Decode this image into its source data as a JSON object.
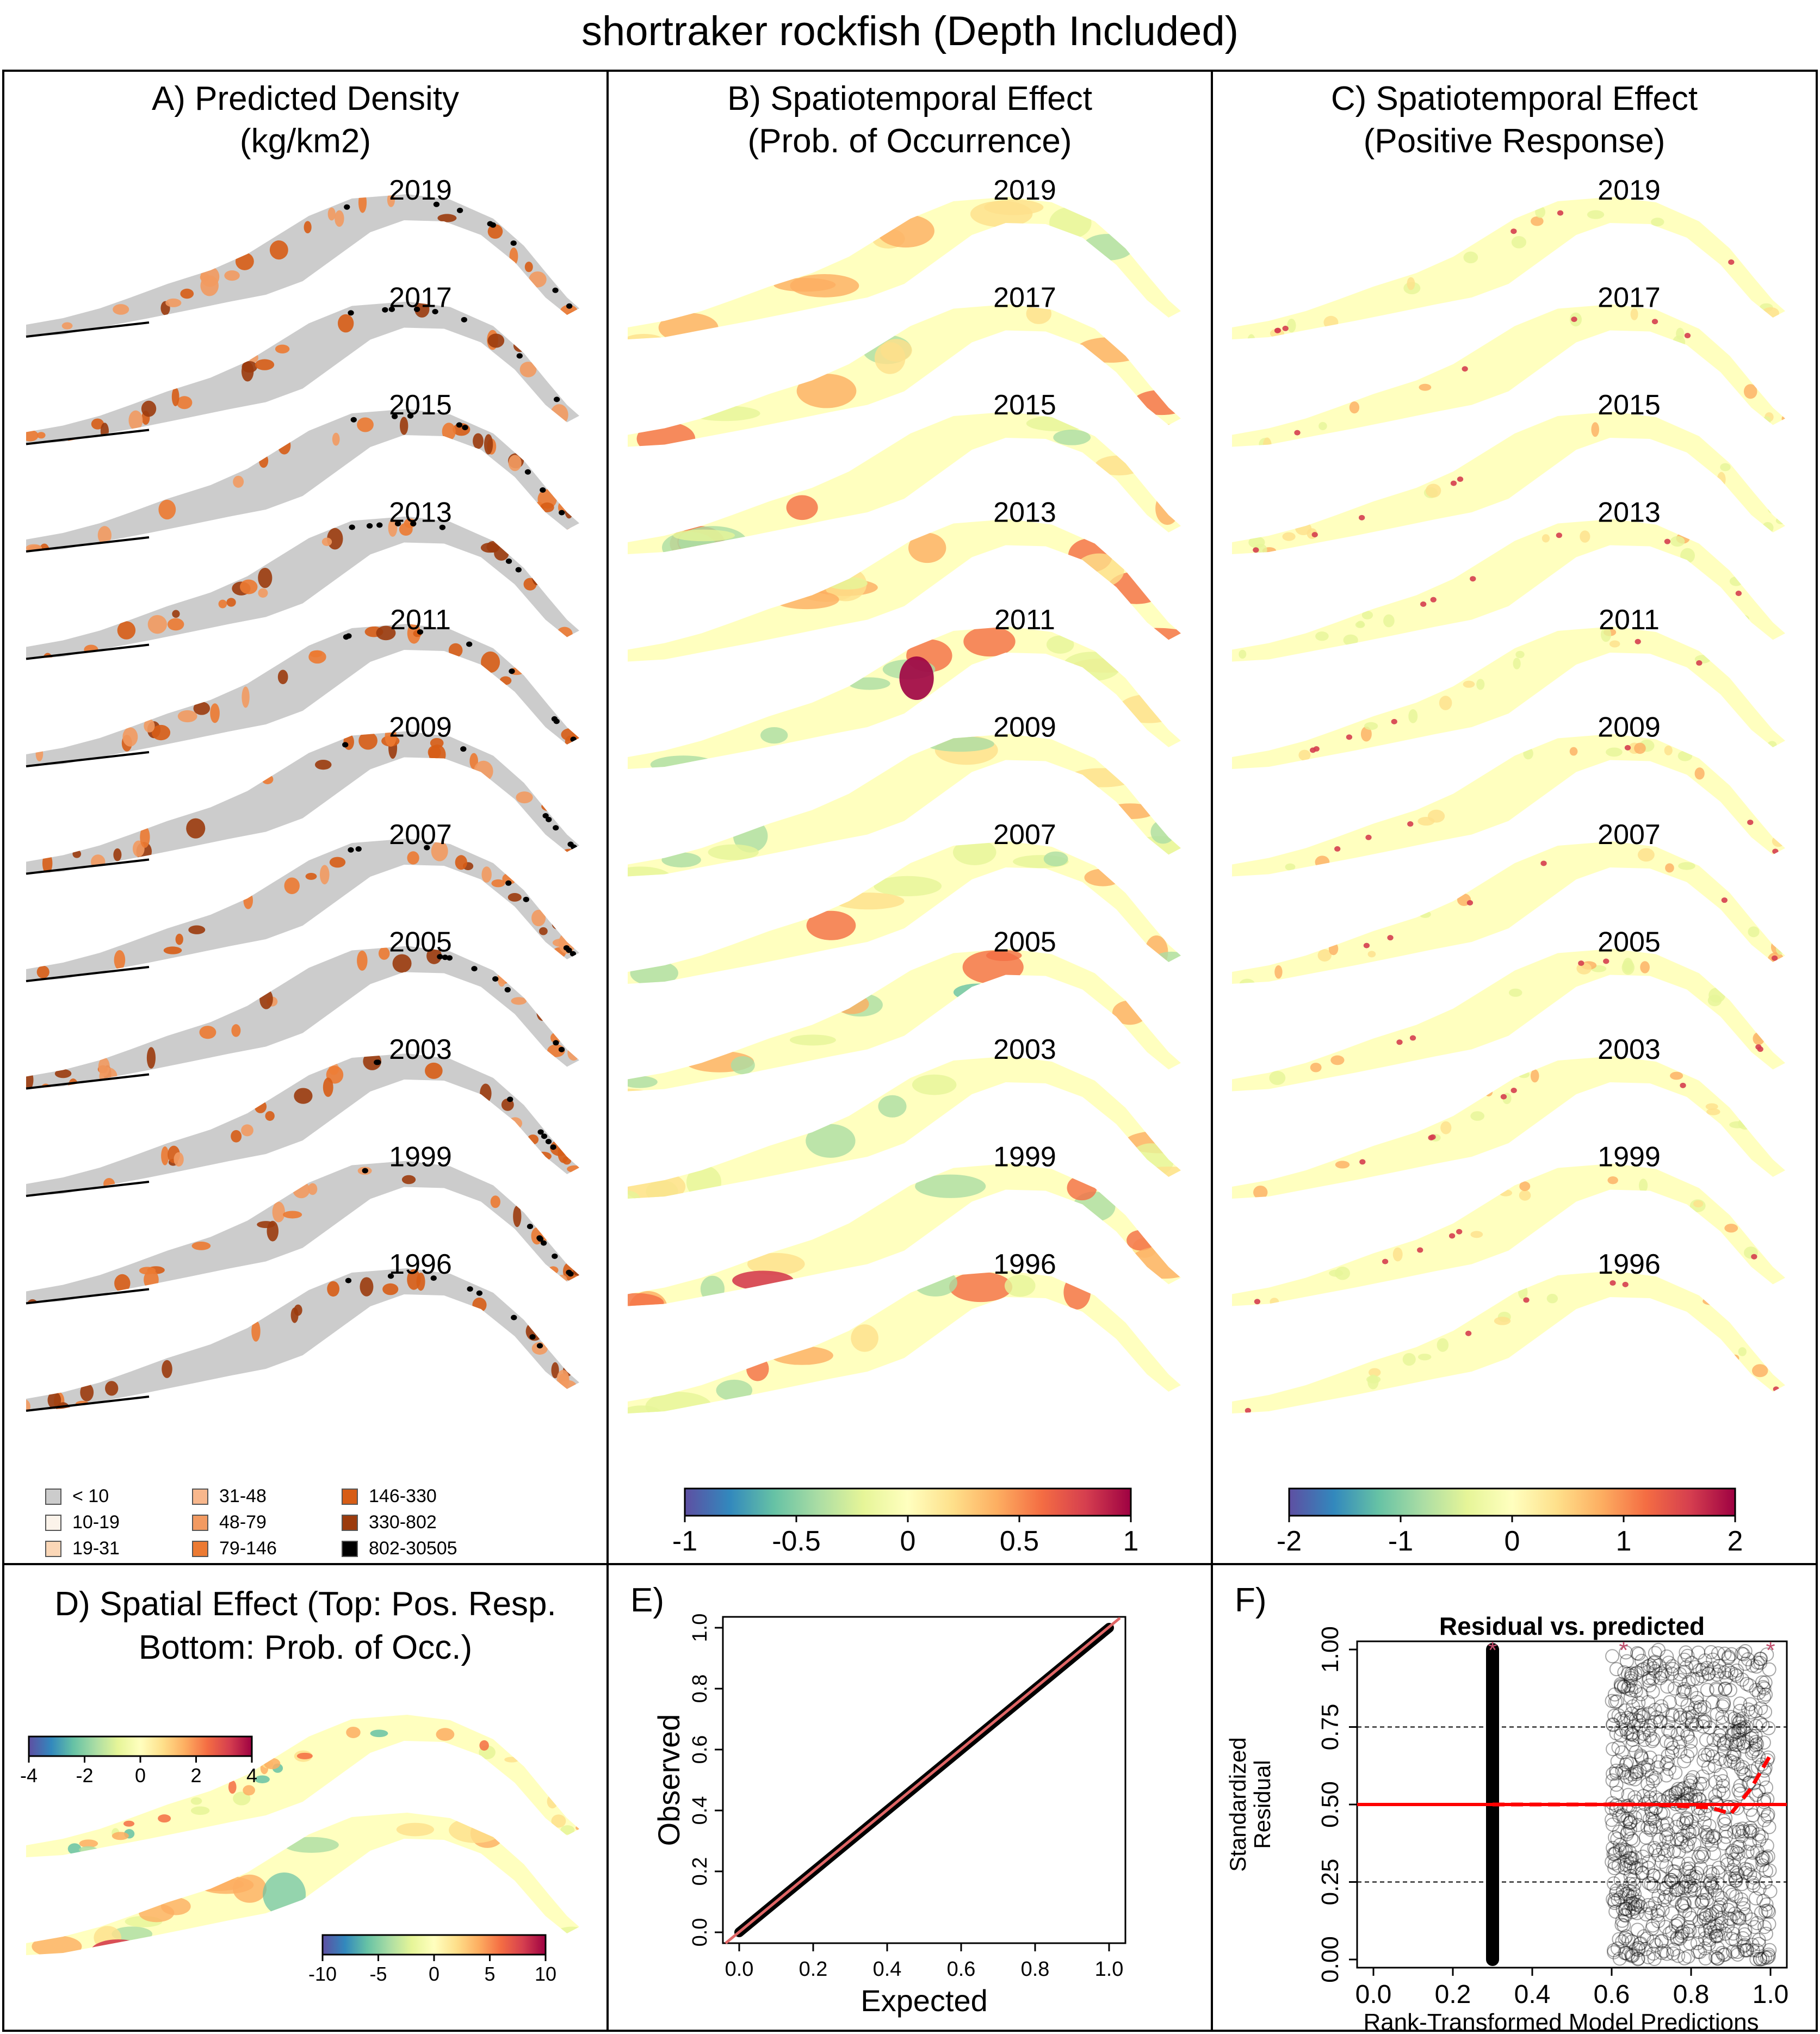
{
  "title": "shortraker rockfish (Depth Included)",
  "years": [
    "2019",
    "2017",
    "2015",
    "2013",
    "2011",
    "2009",
    "2007",
    "2005",
    "2003",
    "1999",
    "1996"
  ],
  "panels": {
    "a": {
      "title_line1": "A) Predicted Density",
      "title_line2": "(kg/km2)",
      "legend": [
        {
          "label": "< 10",
          "color": "#cccccc"
        },
        {
          "label": "10-19",
          "color": "#fbf3ea"
        },
        {
          "label": "19-31",
          "color": "#fbd7b7"
        },
        {
          "label": "31-48",
          "color": "#f8b78c"
        },
        {
          "label": "48-79",
          "color": "#f29a61"
        },
        {
          "label": "79-146",
          "color": "#ec7a32"
        },
        {
          "label": "146-330",
          "color": "#d75d16"
        },
        {
          "label": "330-802",
          "color": "#9b3b0d"
        },
        {
          "label": "802-30505",
          "color": "#000000"
        }
      ]
    },
    "b": {
      "title_line1": "B) Spatiotemporal Effect",
      "title_line2": "(Prob. of Occurrence)",
      "colorbar_ticks": [
        "-1",
        "-0.5",
        "0",
        "0.5",
        "1"
      ]
    },
    "c": {
      "title_line1": "C) Spatiotemporal Effect",
      "title_line2": "(Positive Response)",
      "colorbar_ticks": [
        "-2",
        "-1",
        "0",
        "1",
        "2"
      ]
    },
    "d": {
      "title_line1": "D) Spatial Effect (Top: Pos. Resp.",
      "title_line2": "Bottom: Prob. of Occ.)",
      "colorbar_top_ticks": [
        "-4",
        "-2",
        "0",
        "2",
        "4"
      ],
      "colorbar_bottom_ticks": [
        "-10",
        "-5",
        "0",
        "5",
        "10"
      ]
    },
    "e": {
      "label": "E)",
      "xlabel": "Expected",
      "ylabel": "Observed",
      "ticks": [
        "0.0",
        "0.2",
        "0.4",
        "0.6",
        "0.8",
        "1.0"
      ]
    },
    "f": {
      "label": "F)",
      "title": "Residual vs. predicted",
      "xlabel": "Rank-Transformed Model Predictions",
      "ylabel_line1": "Standardized",
      "ylabel_line2": "Residual",
      "xticks": [
        "0.0",
        "0.2",
        "0.4",
        "0.6",
        "0.8",
        "1.0"
      ],
      "yticks": [
        "0.00",
        "0.25",
        "0.50",
        "0.75",
        "1.00"
      ]
    }
  },
  "colors": {
    "spectral": [
      "#5e4fa2",
      "#3288bd",
      "#66c2a5",
      "#abdda4",
      "#e6f598",
      "#ffffbf",
      "#fee08b",
      "#fdae61",
      "#f46d43",
      "#d53e4f",
      "#9e0142"
    ],
    "qq_line": "#e06666",
    "residual_line": "#ff0000",
    "star": "#c0506e"
  },
  "chart_data": [
    {
      "type": "scatter",
      "title": "",
      "xlabel": "Expected",
      "ylabel": "Observed",
      "xlim": [
        0,
        1
      ],
      "ylim": [
        0,
        1
      ],
      "series": [
        {
          "x": [
            0,
            0.2,
            0.4,
            0.6,
            0.8,
            1.0
          ],
          "y": [
            0,
            0.2,
            0.4,
            0.6,
            0.8,
            1.0
          ]
        }
      ],
      "reference_line": [
        [
          0,
          0
        ],
        [
          1,
          1
        ]
      ]
    },
    {
      "type": "scatter",
      "title": "Residual vs. predicted",
      "xlabel": "Rank-Transformed Model Predictions",
      "ylabel": "Standardized Residual",
      "xlim": [
        0,
        1
      ],
      "ylim": [
        0,
        1
      ],
      "horizontal_lines": [
        0.25,
        0.5,
        0.75
      ],
      "zero_cluster_x": 0.3,
      "positive_cluster_x_range": [
        0.6,
        1.0
      ],
      "outlier_stars": [
        [
          0.3,
          1.0
        ],
        [
          0.63,
          1.0
        ],
        [
          1.0,
          1.0
        ]
      ],
      "quantile_fit": {
        "x": [
          0.3,
          0.5,
          0.7,
          0.85,
          0.9,
          0.95,
          1.0
        ],
        "y": [
          0.5,
          0.5,
          0.5,
          0.49,
          0.47,
          0.55,
          0.66
        ]
      }
    }
  ]
}
